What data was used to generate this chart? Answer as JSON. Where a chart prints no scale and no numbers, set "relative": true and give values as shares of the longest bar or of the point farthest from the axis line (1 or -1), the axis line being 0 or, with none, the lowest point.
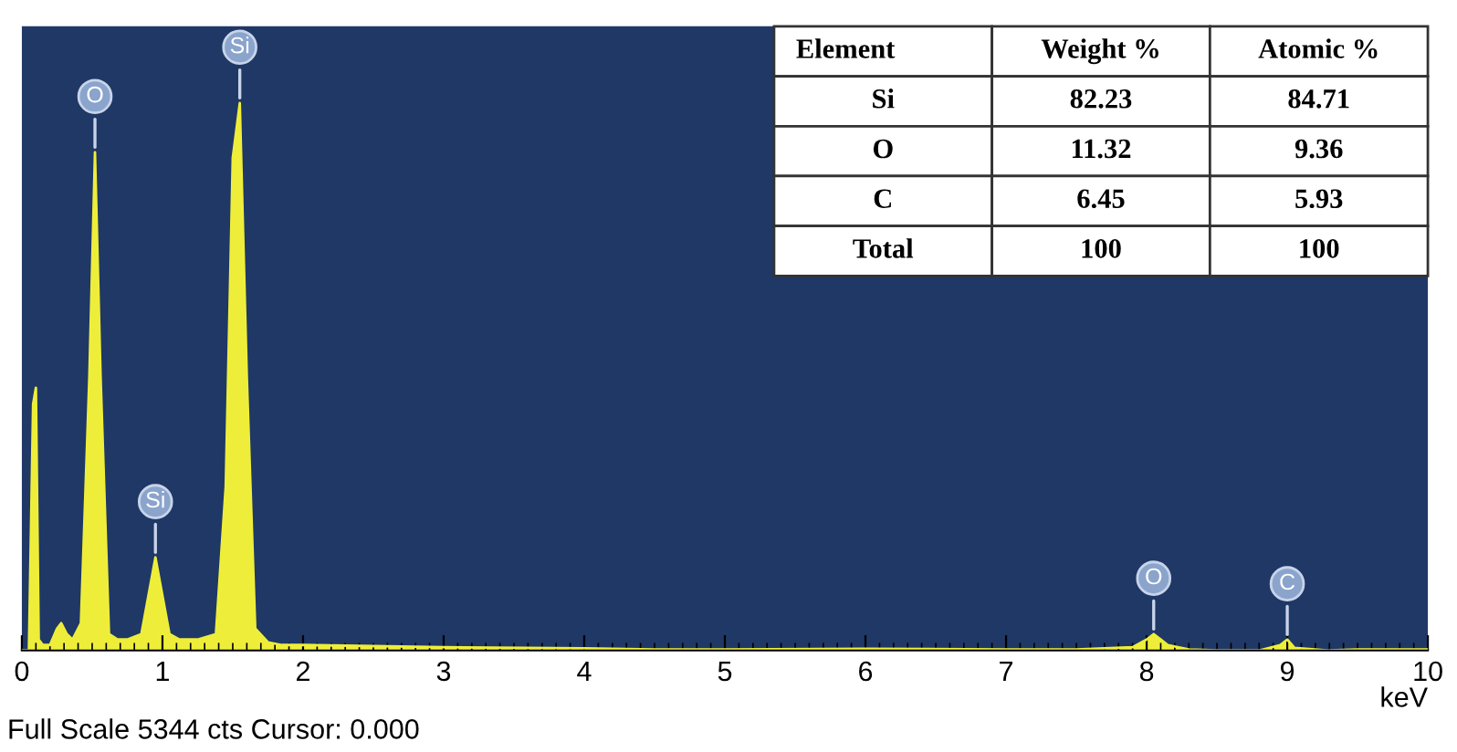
{
  "chart_data": {
    "type": "area",
    "relative": true,
    "xlabel": "keV",
    "xlim": [
      0,
      10
    ],
    "xticks": [
      0,
      1,
      2,
      3,
      4,
      5,
      6,
      7,
      8,
      9,
      10
    ],
    "grid": false,
    "legend": false,
    "series": [
      {
        "color": "#eeee3a",
        "x": [
          0,
          0.05,
          0.08,
          0.1,
          0.12,
          0.15,
          0.2,
          0.25,
          0.28,
          0.32,
          0.36,
          0.42,
          0.48,
          0.52,
          0.56,
          0.62,
          0.68,
          0.75,
          0.85,
          0.9,
          0.95,
          1.0,
          1.05,
          1.12,
          1.25,
          1.38,
          1.45,
          1.5,
          1.55,
          1.6,
          1.66,
          1.75,
          1.85,
          2,
          3,
          4,
          4.5,
          5,
          6,
          7,
          7.5,
          7.9,
          8.0,
          8.05,
          8.15,
          8.3,
          8.5,
          8.8,
          8.95,
          9.0,
          9.05,
          9.3,
          9.5,
          10
        ],
        "values": [
          0,
          0,
          0.45,
          0.48,
          0.02,
          0.01,
          0.01,
          0.04,
          0.05,
          0.03,
          0.02,
          0.05,
          0.5,
          0.91,
          0.5,
          0.03,
          0.02,
          0.02,
          0.03,
          0.1,
          0.17,
          0.1,
          0.03,
          0.02,
          0.02,
          0.03,
          0.3,
          0.9,
          1,
          0.5,
          0.04,
          0.015,
          0.01,
          0.01,
          0.006,
          0.004,
          0.002,
          0.002,
          0.003,
          0.002,
          0.002,
          0.006,
          0.02,
          0.03,
          0.01,
          0.002,
          0,
          0,
          0.01,
          0.02,
          0.005,
          0,
          0.002,
          0.002
        ]
      }
    ],
    "annotations": [
      {
        "text": "O",
        "x": 0.52,
        "y": 0.91
      },
      {
        "text": "Si",
        "x": 1.55,
        "y": 1
      },
      {
        "text": "Si",
        "x": 0.95,
        "y": 0.17
      },
      {
        "text": "O",
        "x": 8.05,
        "y": 0.03
      },
      {
        "text": "C",
        "x": 9.0,
        "y": 0.02
      },
      "Element",
      "Weight %",
      "Atomic %",
      "Si",
      "82.23",
      "84.71",
      "O",
      "11.32",
      "9.36",
      "C",
      "6.45",
      "5.93",
      "Total",
      "100",
      "100",
      "Full Scale 5344 cts Cursor: 0.000"
    ]
  }
}
